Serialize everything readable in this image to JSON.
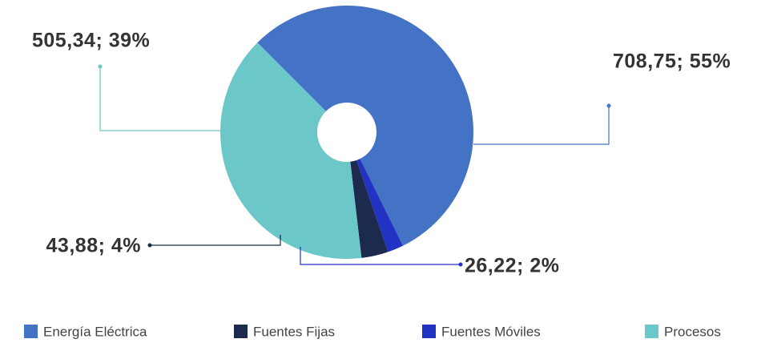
{
  "chart_data": {
    "type": "donut",
    "categories": [
      "Energía Eléctrica",
      "Fuentes Fijas",
      "Fuentes Móviles",
      "Procesos"
    ],
    "values": [
      708.75,
      43.88,
      26.22,
      505.34
    ],
    "value_labels": [
      "708,75; 55%",
      "43,88; 4%",
      "26,22; 2%",
      "505,34; 39%"
    ],
    "colors": [
      "#4472c4",
      "#1c2a4e",
      "#2233c4",
      "#6cc8c8"
    ],
    "slice_order": [
      0,
      2,
      1,
      3
    ],
    "legend": "bottom"
  }
}
